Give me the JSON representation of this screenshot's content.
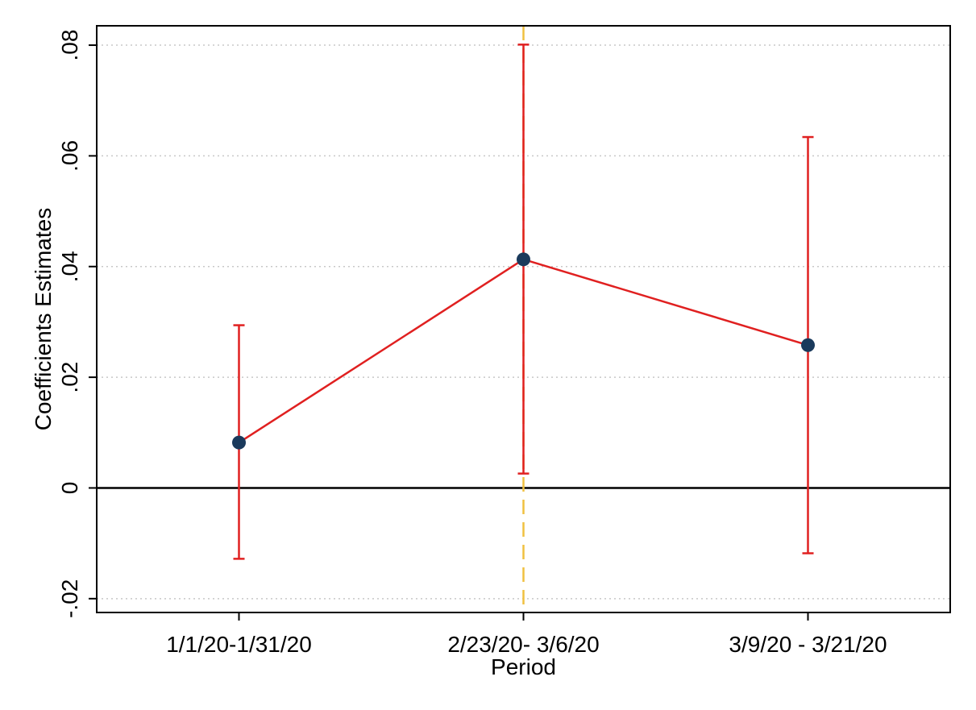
{
  "chart_data": {
    "type": "scatter",
    "title": "",
    "xlabel": "Period",
    "ylabel": "Coefficients Estimates",
    "categories": [
      "1/1/20-1/31/20",
      "2/23/20- 3/6/20",
      "3/9/20 - 3/21/20"
    ],
    "series": [
      {
        "values": [
          0.0082,
          0.0413,
          0.0258
        ],
        "ci_lower": [
          -0.0128,
          0.0026,
          -0.0118
        ],
        "ci_upper": [
          0.0294,
          0.0801,
          0.0634
        ]
      }
    ],
    "ylim": [
      -0.0225,
      0.0835
    ],
    "yticks": [
      -0.02,
      0,
      0.02,
      0.04,
      0.06,
      0.08
    ],
    "ytick_labels": [
      "-.02",
      "0",
      ".02",
      ".04",
      ".06",
      ".08"
    ],
    "reference_hline": 0,
    "reference_vline_category": "2/23/20- 3/6/20",
    "grid": true,
    "legend": "none",
    "colors": {
      "marker": "#1a3a5c",
      "line": "#e02020",
      "errorbar": "#e02020",
      "vline": "#f0c040",
      "zero_line": "#000000",
      "grid": "#c8c8c8"
    }
  }
}
